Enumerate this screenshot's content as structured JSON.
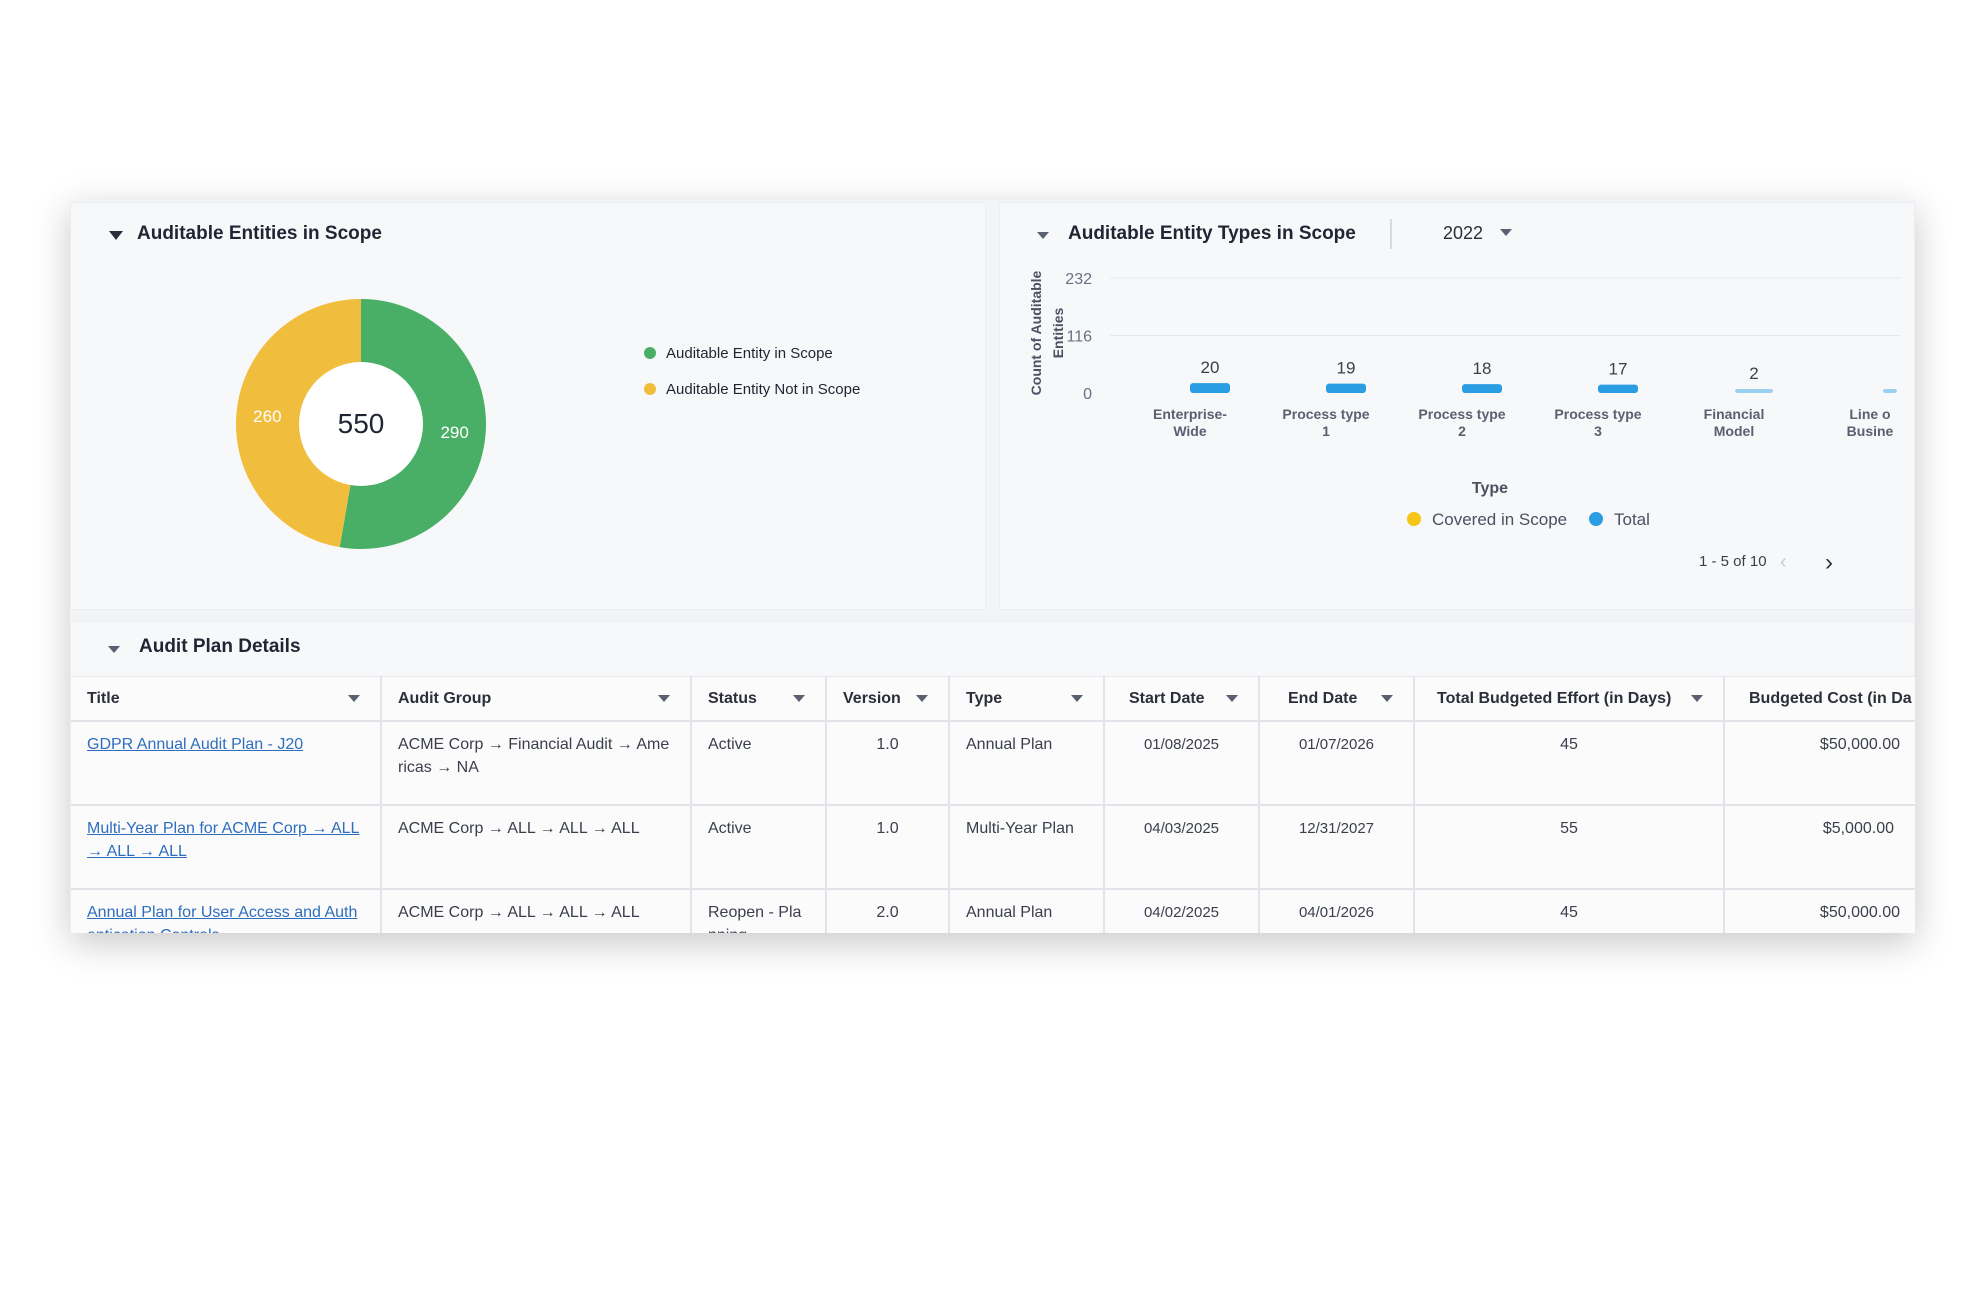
{
  "scope_panel": {
    "title": "Auditable Entities in Scope",
    "total": "550",
    "donut": {
      "in_scope": {
        "label": "Auditable Entity in Scope",
        "value": 290,
        "color": "#4aaf66"
      },
      "not_in_scope": {
        "label": "Auditable Entity Not in Scope",
        "value": 260,
        "color": "#f0bd3c"
      }
    }
  },
  "types_panel": {
    "title": "Auditable Entity Types in Scope",
    "year": "2022",
    "pagination": "1 - 5 of 10"
  },
  "chart_data": {
    "type": "bar",
    "title": "",
    "xlabel": "Type",
    "ylabel": "Count of Auditable Entities",
    "y_ticks": [
      "232",
      "116",
      "0"
    ],
    "ylim": [
      0,
      232
    ],
    "categories": [
      {
        "line1": "Enterprise-",
        "line2": "Wide"
      },
      {
        "line1": "Process type",
        "line2": "1"
      },
      {
        "line1": "Process type",
        "line2": "2"
      },
      {
        "line1": "Process type",
        "line2": "3"
      },
      {
        "line1": "Financial",
        "line2": "Model"
      },
      {
        "line1": "Line o",
        "line2": "Busine"
      }
    ],
    "value_labels": [
      "20",
      "19",
      "18",
      "17",
      "2",
      ""
    ],
    "values": [
      20,
      19,
      18,
      17,
      2,
      1
    ],
    "series": [
      {
        "name": "Covered in Scope",
        "color": "#f5c518"
      },
      {
        "name": "Total",
        "color": "#2b9de3"
      }
    ],
    "grid": true,
    "legend": "bottom"
  },
  "plan_panel": {
    "title": "Audit Plan Details",
    "columns": [
      "Title",
      "Audit Group",
      "Status",
      "Version",
      "Type",
      "Start Date",
      "End Date",
      "Total Budgeted Effort (in Days)",
      "Budgeted Cost (in Da"
    ],
    "rows": [
      {
        "title": "GDPR Annual Audit Plan - J20",
        "group": "ACME Corp → Financial Audit → Americas → NA",
        "status": "Active",
        "version": "1.0",
        "type": "Annual Plan",
        "start": "01/08/2025",
        "end": "01/07/2026",
        "effort": "45",
        "cost": "$50,000.00"
      },
      {
        "title": "Multi-Year Plan for ACME Corp → ALL → ALL → ALL",
        "group": "ACME Corp → ALL → ALL → ALL",
        "status": "Active",
        "version": "1.0",
        "type": "Multi-Year Plan",
        "start": "04/03/2025",
        "end": "12/31/2027",
        "effort": "55",
        "cost": "$5,000.00"
      },
      {
        "title": "Annual Plan for User Access and Authentication Controls",
        "group": "ACME Corp → ALL → ALL → ALL",
        "status": "Reopen - Planning",
        "version": "2.0",
        "type": "Annual Plan",
        "start": "04/02/2025",
        "end": "04/01/2026",
        "effort": "45",
        "cost": "$50,000.00"
      }
    ]
  }
}
